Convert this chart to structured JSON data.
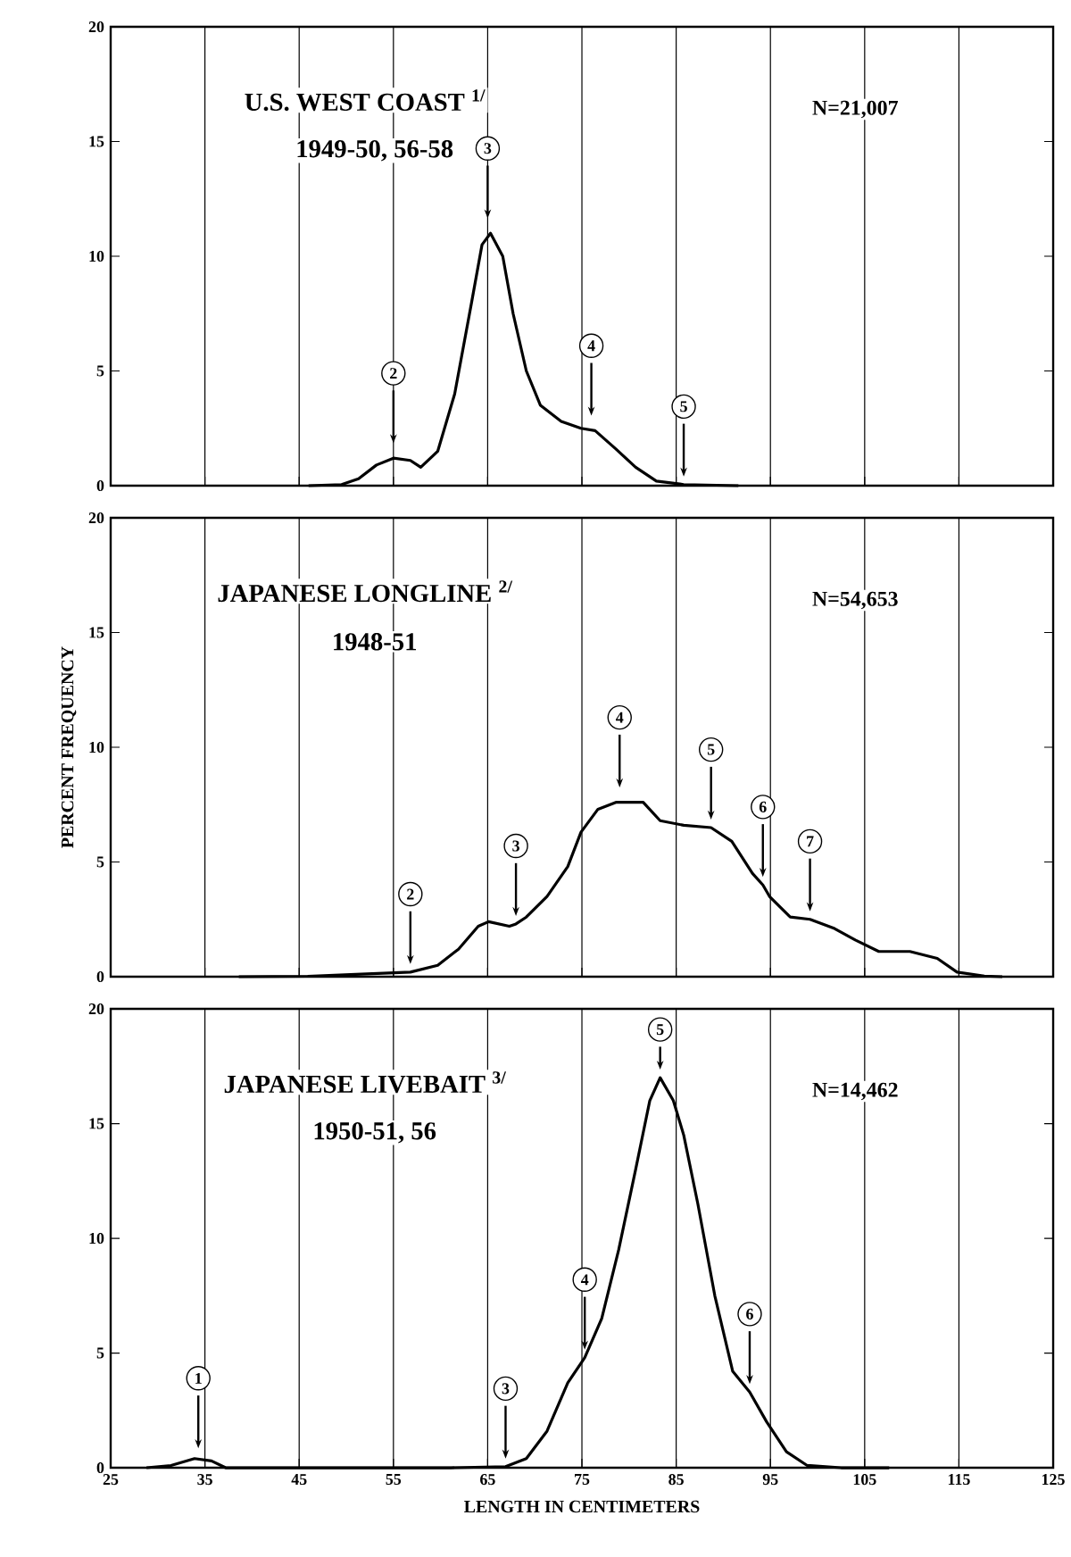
{
  "chart_data": [
    {
      "type": "line",
      "title": "U.S. WEST COAST $^{1/}$",
      "subtitle": "1949-50, 56-58",
      "color": "#000000",
      "grid": "x",
      "tick_labels": "y",
      "xlim": [
        25,
        125
      ],
      "xticks": [
        25,
        35,
        45,
        55,
        65,
        75,
        85,
        95,
        105,
        115,
        125
      ],
      "ylim": [
        0,
        20
      ],
      "yticks": [
        0,
        5,
        10,
        15,
        20
      ],
      "x": [
        46,
        49.5,
        51.3,
        53.2,
        55,
        56.8,
        57.9,
        59.7,
        61.5,
        63.3,
        64.4,
        65.3,
        66.6,
        67.7,
        69.1,
        70.6,
        72.8,
        74.9,
        76.4,
        78.6,
        80.7,
        82.9,
        85.8,
        91.6
      ],
      "values": [
        0,
        0.05,
        0.3,
        0.9,
        1.2,
        1.1,
        0.8,
        1.5,
        4,
        8,
        10.5,
        11,
        10,
        7.5,
        5,
        3.5,
        2.8,
        2.5,
        2.4,
        1.6,
        0.8,
        0.2,
        0.05,
        0
      ],
      "annotations": [
        {
          "text": "2",
          "x": 55,
          "y": 1.5
        },
        {
          "text": "3",
          "x": 65,
          "y": 11.3
        },
        {
          "text": "4",
          "x": 76,
          "y": 2.7
        },
        {
          "text": "5",
          "x": 85.8,
          "y": 0.05
        },
        "N=21,007"
      ]
    },
    {
      "type": "line",
      "title": "JAPANESE  LONGLINE $^{2/}$",
      "subtitle": "1948-51",
      "ylabel": "PERCENT FREQUENCY",
      "color": "#000000",
      "grid": "x",
      "tick_labels": "y",
      "xlim": [
        25,
        125
      ],
      "xticks": [
        25,
        35,
        45,
        55,
        65,
        75,
        85,
        95,
        105,
        115,
        125
      ],
      "ylim": [
        0,
        20
      ],
      "yticks": [
        0,
        5,
        10,
        15,
        20
      ],
      "x": [
        38.6,
        45.9,
        51,
        56.8,
        59.7,
        61.9,
        64,
        65.1,
        67.3,
        68,
        69.1,
        71.3,
        73.5,
        74.9,
        76.7,
        78.6,
        81.5,
        83.3,
        85.8,
        88.7,
        90.9,
        93.1,
        94.2,
        94.9,
        97.1,
        99.2,
        101.8,
        104,
        106.5,
        109.8,
        112.7,
        114.8,
        117.7,
        119.6
      ],
      "values": [
        0,
        0.02,
        0.1,
        0.2,
        0.5,
        1.2,
        2.2,
        2.4,
        2.2,
        2.3,
        2.6,
        3.5,
        4.8,
        6.3,
        7.3,
        7.6,
        7.6,
        6.8,
        6.6,
        6.5,
        5.9,
        4.5,
        4,
        3.5,
        2.6,
        2.5,
        2.1,
        1.6,
        1.1,
        1.1,
        0.8,
        0.2,
        0.03,
        0
      ],
      "annotations": [
        {
          "text": "2",
          "x": 56.8,
          "y": 0.2
        },
        {
          "text": "3",
          "x": 68,
          "y": 2.3
        },
        {
          "text": "4",
          "x": 79,
          "y": 7.9
        },
        {
          "text": "5",
          "x": 88.7,
          "y": 6.5
        },
        {
          "text": "6",
          "x": 94.2,
          "y": 4
        },
        {
          "text": "7",
          "x": 99.2,
          "y": 2.5
        },
        "N=54,653"
      ]
    },
    {
      "type": "line",
      "title": "JAPANESE  LIVEBAIT $^{3/}$",
      "subtitle": "1950-51, 56",
      "xlabel": "LENGTH IN CENTIMETERS",
      "color": "#000000",
      "grid": "x",
      "xlim": [
        25,
        125
      ],
      "xticks": [
        25,
        35,
        45,
        55,
        65,
        75,
        85,
        95,
        105,
        115,
        125
      ],
      "ylim": [
        0,
        20
      ],
      "yticks": [
        0,
        5,
        10,
        15,
        20
      ],
      "x": [
        28.8,
        31.4,
        33.9,
        35.7,
        37.2,
        61.1,
        66.9,
        69.1,
        71.3,
        73.5,
        75.3,
        77.1,
        78.9,
        80.7,
        82.2,
        83.3,
        84.7,
        85.8,
        87.3,
        89.1,
        91,
        92.8,
        94.6,
        96.7,
        98.9,
        102.5,
        107.6
      ],
      "values": [
        0,
        0.1,
        0.4,
        0.3,
        0,
        0,
        0.05,
        0.4,
        1.6,
        3.7,
        4.8,
        6.5,
        9.5,
        13,
        16,
        17,
        16,
        14.5,
        11.5,
        7.5,
        4.2,
        3.3,
        2,
        0.7,
        0.1,
        0,
        0
      ],
      "annotations": [
        {
          "text": "1",
          "x": 34.3,
          "y": 0.5
        },
        {
          "text": "3",
          "x": 66.9,
          "y": 0.05
        },
        {
          "text": "4",
          "x": 75.3,
          "y": 4.8
        },
        {
          "text": "5",
          "x": 83.3,
          "y": 17
        },
        {
          "text": "6",
          "x": 92.8,
          "y": 3.3
        },
        "N=14,462"
      ]
    }
  ]
}
